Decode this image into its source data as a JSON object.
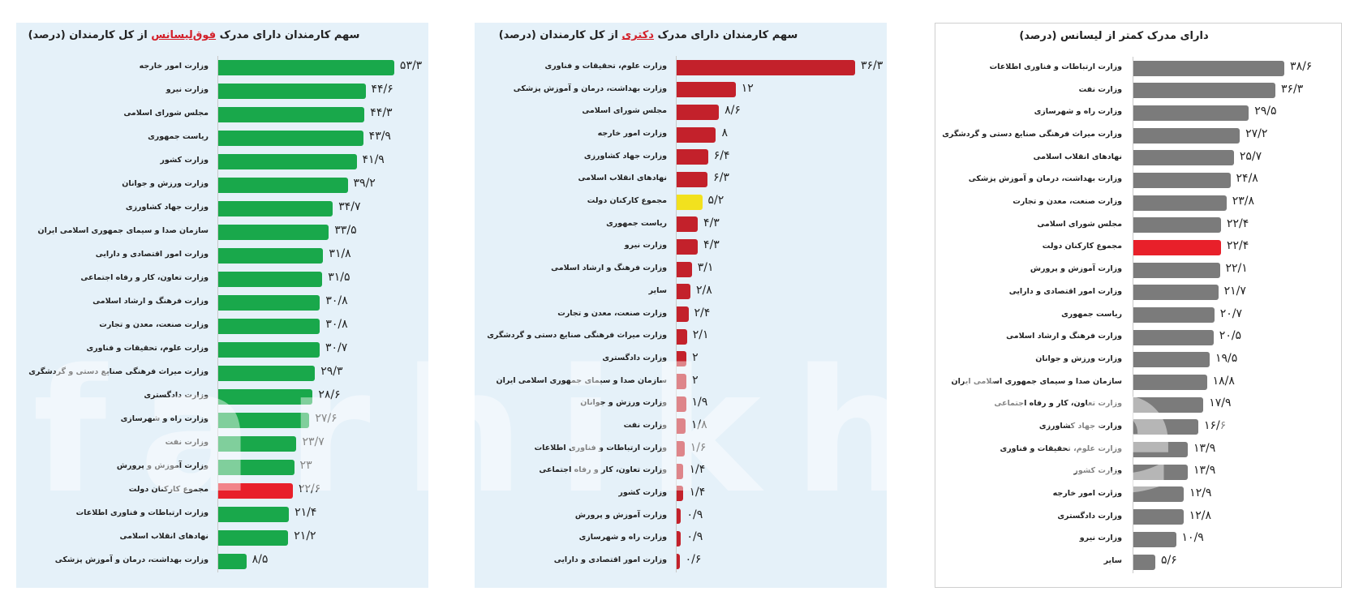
{
  "watermark": "farhikhtegan",
  "colors": {
    "green": "#19a84b",
    "red": "#c3212b",
    "yellow": "#f2e11e",
    "gray": "#7b7b7b",
    "highlight": "#e8202a"
  },
  "chart_data": [
    {
      "type": "bar",
      "orientation": "horizontal",
      "title_parts": [
        "سهم کارمندان دارای مدرک ",
        "فوق‌لیسانس",
        " از کل کارمندان (درصد)"
      ],
      "bar_color": "#19a84b",
      "highlight_category": "مجموع کارکنان دولت",
      "highlight_color": "#e8202a",
      "categories": [
        "وزارت امور خارجه",
        "وزارت نیرو",
        "مجلس شورای اسلامی",
        "ریاست جمهوری",
        "وزارت کشور",
        "وزارت ورزش و جوانان",
        "وزارت جهاد کشاورزی",
        "سازمان صدا و سیمای جمهوری اسلامی ایران",
        "وزارت امور اقتصادی و دارایی",
        "وزارت تعاون، کار و رفاه اجتماعی",
        "وزارت فرهنگ و ارشاد اسلامی",
        "وزارت صنعت، معدن و تجارت",
        "وزارت علوم، تحقیقات و فناوری",
        "وزارت میراث فرهنگی صنایع دستی و گردشگری",
        "وزارت دادگستری",
        "وزارت راه و شهرسازی",
        "وزارت نفت",
        "وزارت آموزش و پرورش",
        "مجموع کارکنان دولت",
        "وزارت ارتباطات و فناوری اطلاعات",
        "نهادهای انقلاب اسلامی",
        "وزارت بهداشت، درمان و آموزش پزشکی"
      ],
      "values": [
        53.3,
        44.6,
        44.3,
        43.9,
        41.9,
        39.2,
        34.7,
        33.5,
        31.8,
        31.5,
        30.8,
        30.8,
        30.7,
        29.3,
        28.6,
        27.6,
        23.7,
        23,
        22.6,
        21.4,
        21.2,
        8.5
      ],
      "value_labels": [
        "۵۳/۳",
        "۴۴/۶",
        "۴۴/۳",
        "۴۳/۹",
        "۴۱/۹",
        "۳۹/۲",
        "۳۴/۷",
        "۳۳/۵",
        "۳۱/۸",
        "۳۱/۵",
        "۳۰/۸",
        "۳۰/۸",
        "۳۰/۷",
        "۲۹/۳",
        "۲۸/۶",
        "۲۷/۶",
        "۲۳/۷",
        "۲۳",
        "۲۲/۶",
        "۲۱/۴",
        "۲۱/۲",
        "۸/۵"
      ],
      "xlim": [
        0,
        55
      ]
    },
    {
      "type": "bar",
      "orientation": "horizontal",
      "title_parts": [
        "سهم کارمندان دارای مدرک ",
        "دکتری",
        " از کل کارمندان (درصد)"
      ],
      "bar_color": "#c3212b",
      "highlight_category": "مجموع کارکنان دولت",
      "highlight_color": "#f2e11e",
      "categories": [
        "وزارت علوم، تحقیقات و فناوری",
        "وزارت بهداشت، درمان و آموزش پزشکی",
        "مجلس شورای اسلامی",
        "وزارت امور خارجه",
        "وزارت جهاد کشاورزی",
        "نهادهای انقلاب اسلامی",
        "مجموع کارکنان دولت",
        "ریاست جمهوری",
        "وزارت نیرو",
        "وزارت فرهنگ و ارشاد اسلامی",
        "سایر",
        "وزارت صنعت، معدن و تجارت",
        "وزارت میراث فرهنگی صنایع دستی و گردشگری",
        "وزارت دادگستری",
        "سازمان صدا و سیمای جمهوری اسلامی ایران",
        "وزارت ورزش و جوانان",
        "وزارت نفت",
        "وزارت ارتباطات و فناوری اطلاعات",
        "وزارت تعاون، کار و رفاه اجتماعی",
        "وزارت کشور",
        "وزارت آموزش و پرورش",
        "وزارت راه و شهرسازی",
        "وزارت امور اقتصادی و دارایی"
      ],
      "values": [
        36.3,
        12,
        8.6,
        8,
        6.4,
        6.3,
        5.2,
        4.3,
        4.3,
        3.1,
        2.8,
        2.4,
        2.1,
        2,
        2,
        1.9,
        1.8,
        1.6,
        1.4,
        1.4,
        0.9,
        0.9,
        0.6
      ],
      "value_labels": [
        "۳۶/۳",
        "۱۲",
        "۸/۶",
        "۸",
        "۶/۴",
        "۶/۳",
        "۵/۲",
        "۴/۳",
        "۴/۳",
        "۳/۱",
        "۲/۸",
        "۲/۴",
        "۲/۱",
        "۲",
        "۲",
        "۱/۹",
        "۱/۸",
        "۱/۶",
        "۱/۴",
        "۱/۴",
        "۰/۹",
        "۰/۹",
        "۰/۶"
      ],
      "xlim": [
        0,
        37
      ]
    },
    {
      "type": "bar",
      "orientation": "horizontal",
      "title_parts": [
        "دارای مدرک کمتر از لیسانس (درصد)",
        "",
        ""
      ],
      "bar_color": "#7b7b7b",
      "highlight_category": "مجموع کارکنان دولت",
      "highlight_color": "#e8202a",
      "categories": [
        "وزارت ارتباطات و فناوری اطلاعات",
        "وزارت نفت",
        "وزارت راه و شهرسازی",
        "وزارت میراث فرهنگی صنایع دستی و گردشگری",
        "نهادهای انقلاب اسلامی",
        "وزارت بهداشت، درمان و آموزش پزشکی",
        "وزارت صنعت، معدن و تجارت",
        "مجلس شورای اسلامی",
        "مجموع کارکنان دولت",
        "وزارت آموزش و پرورش",
        "وزارت امور اقتصادی و دارایی",
        "ریاست جمهوری",
        "وزارت فرهنگ و ارشاد اسلامی",
        "وزارت ورزش و جوانان",
        "سازمان صدا و سیمای جمهوری اسلامی ایران",
        "وزارت تعاون، کار و رفاه اجتماعی",
        "وزارت جهاد کشاورزی",
        "وزارت علوم، تحقیقات و فناوری",
        "وزارت کشور",
        "وزارت امور خارجه",
        "وزارت دادگستری",
        "وزارت نیرو",
        "سایر"
      ],
      "values": [
        38.6,
        36.3,
        29.5,
        27.2,
        25.7,
        24.8,
        23.8,
        22.4,
        22.4,
        22.1,
        21.7,
        20.7,
        20.5,
        19.5,
        18.8,
        17.9,
        16.6,
        13.9,
        13.9,
        12.9,
        12.8,
        10.9,
        5.6
      ],
      "value_labels": [
        "۳۸/۶",
        "۳۶/۳",
        "۲۹/۵",
        "۲۷/۲",
        "۲۵/۷",
        "۲۴/۸",
        "۲۳/۸",
        "۲۲/۴",
        "۲۲/۴",
        "۲۲/۱",
        "۲۱/۷",
        "۲۰/۷",
        "۲۰/۵",
        "۱۹/۵",
        "۱۸/۸",
        "۱۷/۹",
        "۱۶/۶",
        "۱۳/۹",
        "۱۳/۹",
        "۱۲/۹",
        "۱۲/۸",
        "۱۰/۹",
        "۵/۶"
      ],
      "xlim": [
        0,
        40
      ]
    }
  ]
}
